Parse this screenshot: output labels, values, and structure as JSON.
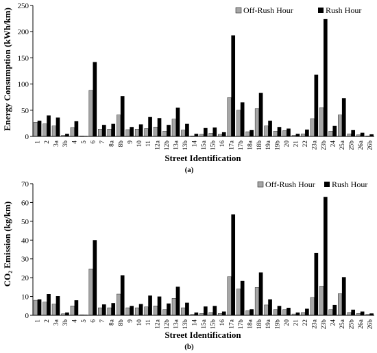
{
  "chart_data": [
    {
      "type": "bar",
      "ylabel": "Energy Consumption (kWh/km)",
      "xlabel": "Street Identification",
      "panel_label": "(a)",
      "ylim": [
        0,
        250
      ],
      "yticks": [
        0,
        50,
        100,
        150,
        200,
        250
      ],
      "grid": false,
      "legend_position": "top-right",
      "categories": [
        "1",
        "2",
        "3a",
        "3b",
        "4",
        "5",
        "6",
        "7",
        "8a",
        "8b",
        "9",
        "10",
        "11",
        "12a",
        "12b",
        "13a",
        "13b",
        "14",
        "15a",
        "15b",
        "16",
        "17a",
        "17b",
        "18a",
        "18b",
        "19a",
        "19b",
        "20",
        "21",
        "22",
        "23a",
        "23b",
        "24",
        "25a",
        "25b",
        "26a",
        "26b"
      ],
      "series": [
        {
          "name": "Off-Rush Hour",
          "color": "#a6a6a6",
          "values": [
            27,
            24,
            20,
            2,
            17,
            1,
            88,
            14,
            14,
            41,
            13,
            14,
            15,
            18,
            10,
            33,
            12,
            1,
            4,
            6,
            4,
            74,
            50,
            9,
            53,
            20,
            10,
            11,
            2,
            5,
            34,
            55,
            10,
            41,
            5,
            3,
            1
          ]
        },
        {
          "name": "Rush Hour",
          "color": "#000000",
          "values": [
            30,
            40,
            36,
            5,
            29,
            1,
            142,
            22,
            24,
            77,
            18,
            23,
            37,
            35,
            22,
            55,
            24,
            5,
            16,
            17,
            8,
            193,
            65,
            12,
            83,
            30,
            18,
            15,
            5,
            13,
            118,
            224,
            20,
            73,
            12,
            7,
            4
          ]
        }
      ]
    },
    {
      "type": "bar",
      "ylabel": "CO₂ Emission (kg/km)",
      "xlabel": "Street Identification",
      "panel_label": "(b)",
      "ylim": [
        0,
        70
      ],
      "yticks": [
        0,
        10,
        20,
        30,
        40,
        50,
        60,
        70
      ],
      "grid": false,
      "legend_position": "top-right",
      "categories": [
        "1",
        "2",
        "3a",
        "3b",
        "4",
        "5",
        "6",
        "7",
        "8a",
        "8b",
        "9",
        "10",
        "11",
        "12a",
        "12b",
        "13a",
        "13b",
        "14",
        "15a",
        "15b",
        "16",
        "17a",
        "17b",
        "18a",
        "18b",
        "19a",
        "19b",
        "20",
        "21",
        "22",
        "23a",
        "23b",
        "24",
        "25a",
        "25b",
        "26a",
        "26b"
      ],
      "series": [
        {
          "name": "Off-Rush Hour",
          "color": "#a6a6a6",
          "values": [
            8,
            7,
            6,
            0.8,
            5,
            0.3,
            24.7,
            4,
            4,
            11.3,
            4,
            4,
            4.5,
            5,
            3,
            9,
            4,
            0.5,
            1,
            1.5,
            1,
            20.5,
            14,
            2.5,
            14.8,
            5.5,
            3,
            3,
            0.7,
            1.5,
            9.5,
            15.5,
            3,
            11.5,
            1.5,
            1,
            0.5
          ]
        },
        {
          "name": "Rush Hour",
          "color": "#000000",
          "values": [
            8.5,
            11.3,
            10.2,
            1.5,
            8,
            0.3,
            40,
            5.8,
            6.5,
            21.3,
            5,
            6,
            10.5,
            10,
            6.3,
            15.2,
            6.7,
            1.5,
            4.7,
            5,
            2,
            53.7,
            18.3,
            3.2,
            22.8,
            8.5,
            5,
            4,
            1.5,
            3.5,
            33.2,
            63,
            5.5,
            20.3,
            3,
            2,
            1
          ]
        }
      ]
    }
  ]
}
